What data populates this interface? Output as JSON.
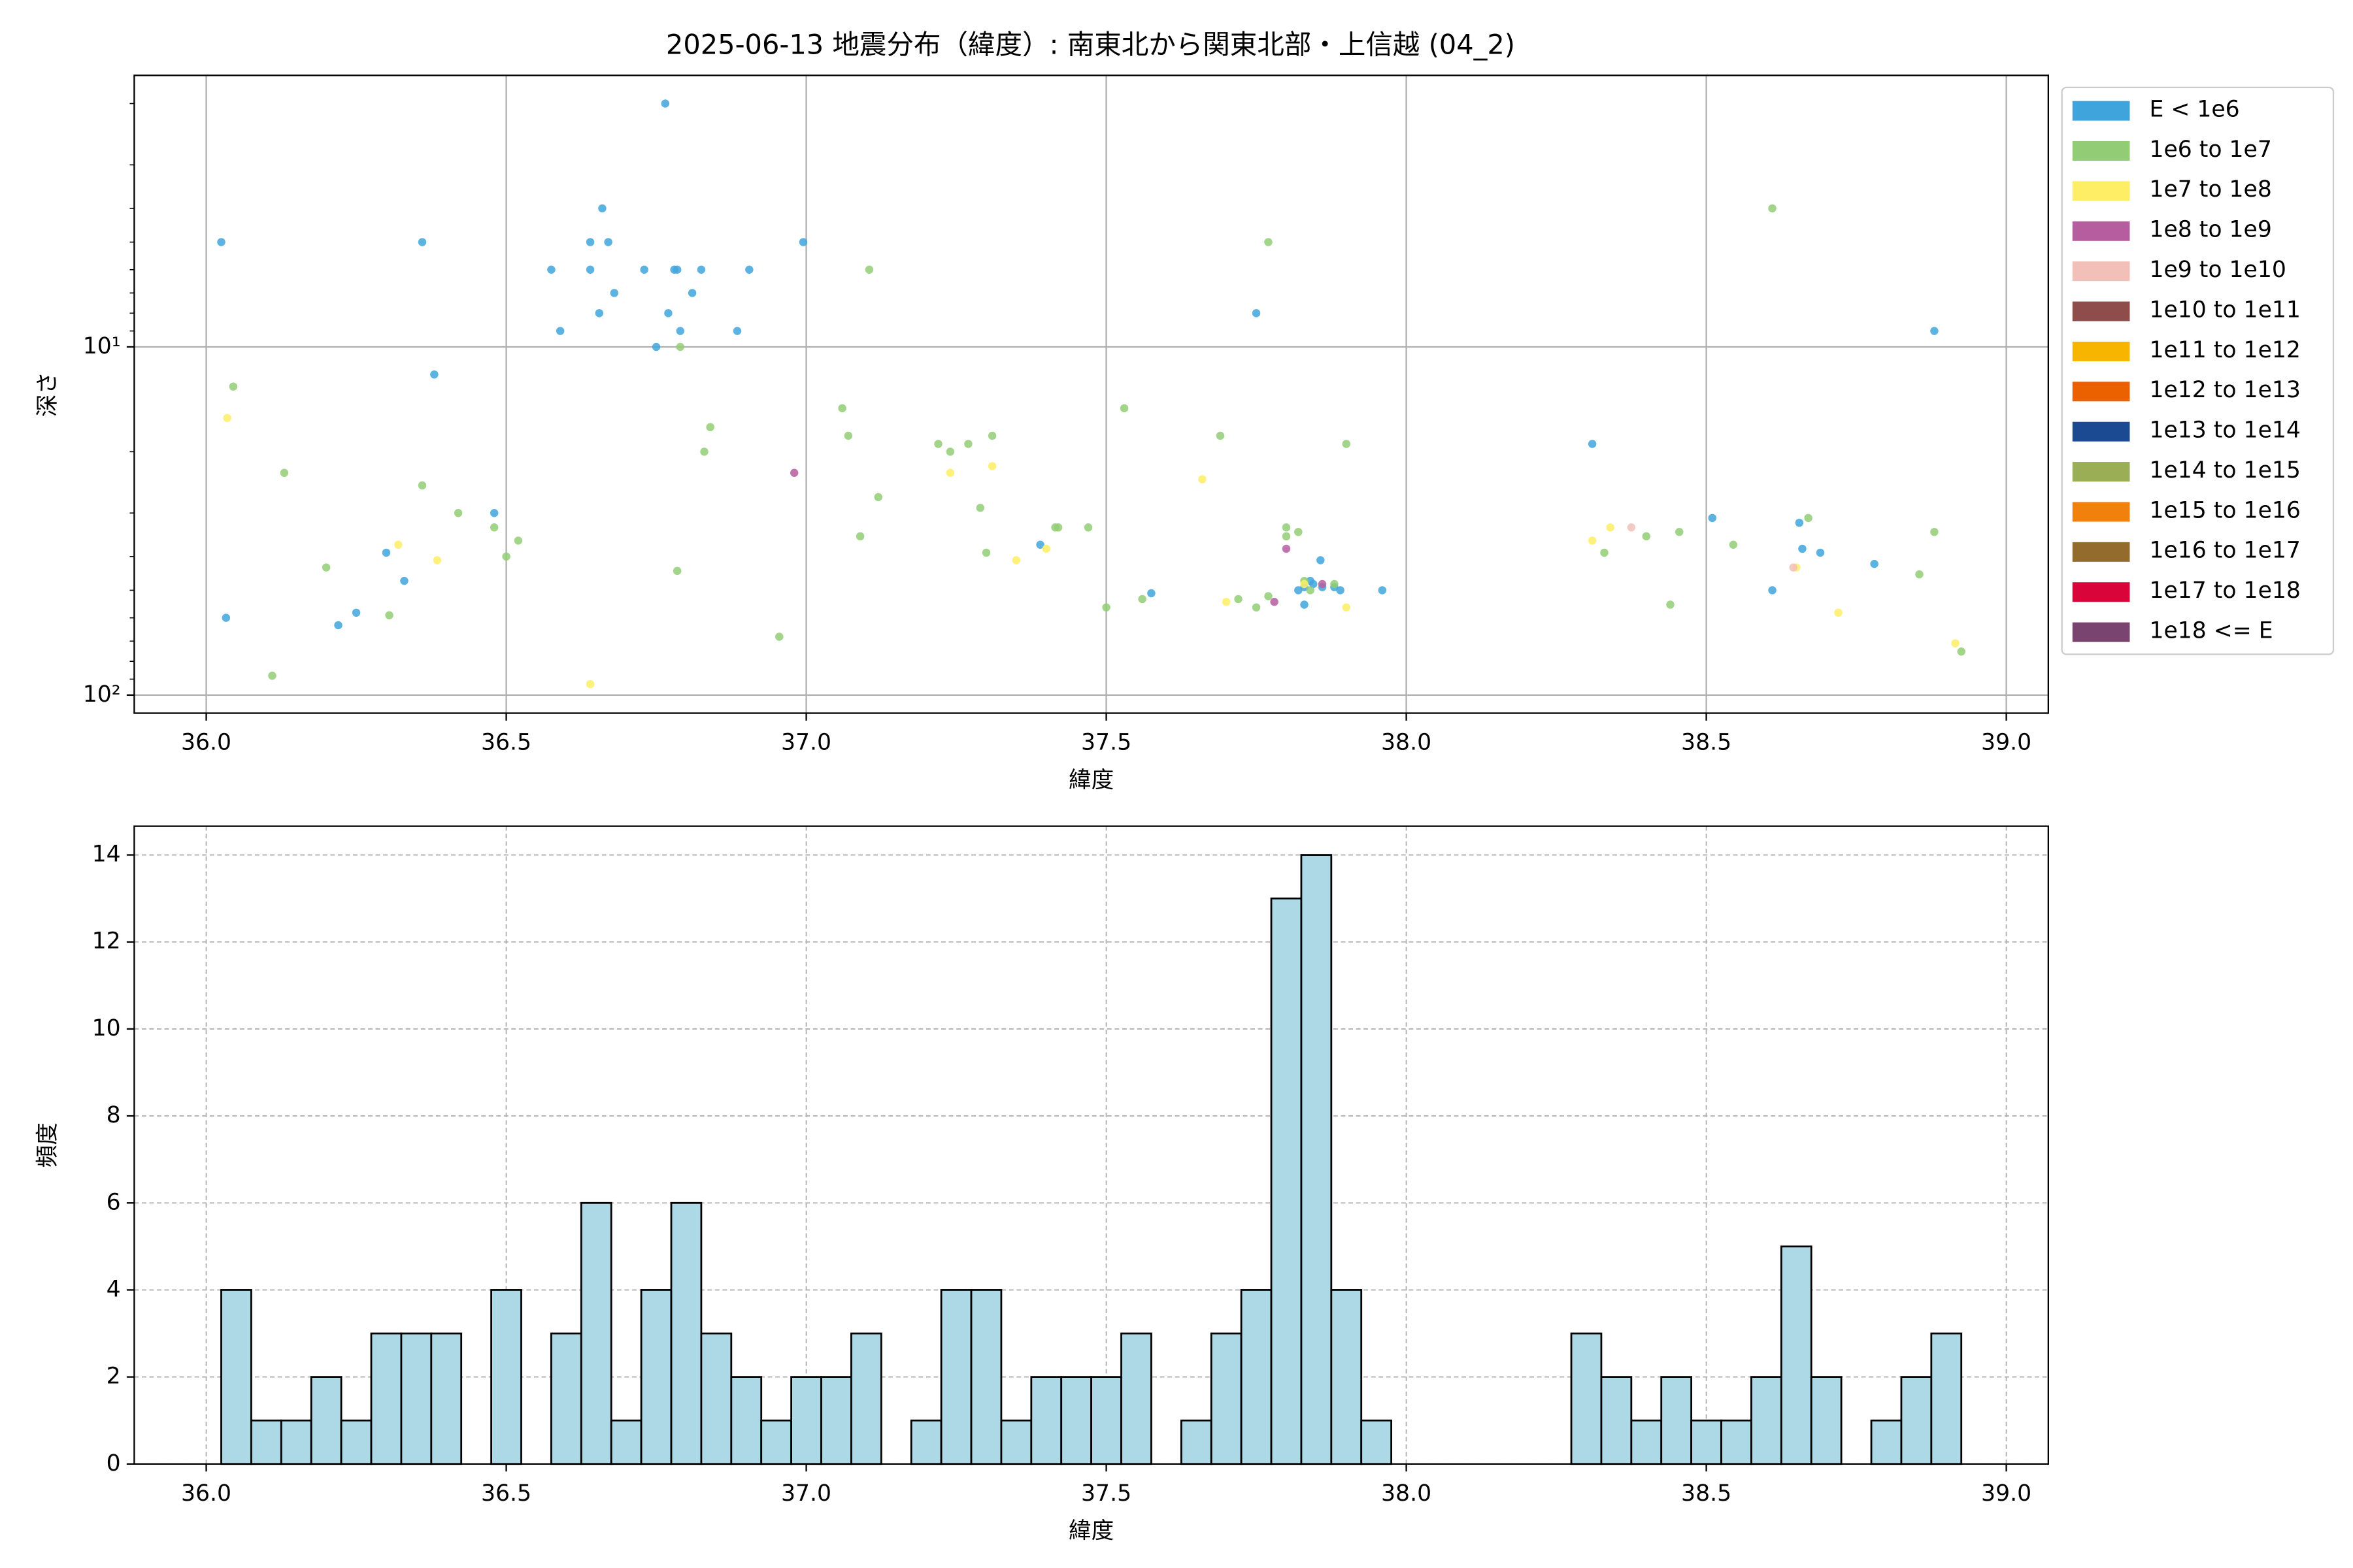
{
  "chart_data": [
    {
      "type": "scatter",
      "title": "2025-06-13 地震分布（緯度）: 南東北から関東北部・上信越 (04_2)",
      "xlabel": "緯度",
      "ylabel": "深さ",
      "xlim": [
        35.88,
        39.07
      ],
      "xticks": [
        {
          "value": 36,
          "label": "36.0"
        },
        36.5,
        {
          "value": 37,
          "label": "37.0"
        },
        37.5,
        {
          "value": 38,
          "label": "38.0"
        },
        38.5,
        {
          "value": 39,
          "label": "39.0"
        }
      ],
      "ylim": [
        1.66,
        112.7
      ],
      "yscale": "log",
      "yinvert": true,
      "yticks": [
        {
          "value": 10,
          "label": "10¹"
        },
        {
          "value": 100,
          "label": "10²"
        }
      ],
      "yminorticks": [
        2,
        3,
        4,
        5,
        6,
        7,
        8,
        9,
        20,
        30,
        40,
        50,
        60,
        70,
        80,
        90
      ],
      "grid": true,
      "legend": "outside right",
      "series": [
        {
          "name": "E < 1e6",
          "color": "#3fa4dc",
          "x": [
            36.025,
            36.033,
            36.36,
            36.38,
            36.48,
            36.3,
            36.33,
            36.25,
            36.22,
            36.575,
            36.59,
            36.64,
            36.64,
            36.66,
            36.67,
            36.655,
            36.68,
            36.73,
            36.75,
            36.765,
            36.77,
            36.78,
            36.785,
            36.79,
            36.81,
            36.825,
            36.885,
            36.905,
            36.995,
            37.39,
            37.575,
            37.75,
            37.857,
            37.84,
            37.83,
            37.82,
            37.83,
            37.845,
            37.86,
            37.88,
            37.89,
            37.96,
            38.31,
            38.51,
            38.61,
            38.655,
            38.66,
            38.69,
            38.78,
            38.88
          ],
          "values": [
            5,
            60,
            5,
            12,
            30,
            39,
            47,
            58,
            63,
            6,
            9,
            5,
            6,
            4,
            5,
            8,
            7,
            6,
            10,
            2,
            8,
            6,
            6,
            9,
            7,
            6,
            9,
            6,
            5,
            37,
            51,
            8,
            41,
            47,
            49,
            50,
            55,
            48,
            49,
            49,
            50,
            50,
            19,
            31,
            50,
            32,
            38,
            39,
            42,
            9
          ]
        },
        {
          "name": "1e6 to 1e7",
          "color": "#92cc74",
          "x": [
            36.045,
            36.13,
            36.2,
            36.305,
            36.11,
            36.36,
            36.42,
            36.48,
            36.5,
            36.52,
            36.785,
            36.79,
            36.83,
            36.84,
            36.955,
            37.06,
            37.07,
            37.09,
            37.105,
            37.12,
            37.22,
            37.24,
            37.27,
            37.31,
            37.29,
            37.3,
            37.415,
            37.42,
            37.47,
            37.5,
            37.53,
            37.56,
            37.69,
            37.72,
            37.75,
            37.77,
            37.77,
            37.8,
            37.8,
            37.82,
            37.9,
            37.83,
            37.84,
            37.88,
            38.33,
            38.4,
            38.44,
            38.455,
            38.545,
            38.61,
            38.67,
            38.855,
            38.88,
            38.925
          ],
          "values": [
            13,
            23,
            43,
            59,
            88,
            25,
            30,
            33,
            40,
            36,
            44,
            10,
            20,
            17,
            68,
            15,
            18,
            35,
            6,
            27,
            19,
            20,
            19,
            18,
            29,
            39,
            33,
            33,
            33,
            56,
            15,
            53,
            18,
            53,
            56,
            5,
            52,
            33,
            35,
            34,
            19,
            47,
            50,
            48,
            39,
            35,
            55,
            34,
            37,
            4,
            31,
            45,
            34,
            75
          ]
        },
        {
          "name": "1e7 to 1e8",
          "color": "#fdee65",
          "x": [
            36.035,
            36.32,
            36.385,
            36.64,
            37.24,
            37.31,
            37.35,
            37.4,
            37.66,
            37.7,
            37.83,
            37.9,
            38.31,
            38.34,
            38.65,
            38.72,
            38.915
          ],
          "values": [
            16,
            37,
            41,
            93,
            23,
            22,
            41,
            38,
            24,
            54,
            48,
            56,
            36,
            33,
            43,
            58,
            71
          ]
        },
        {
          "name": "1e8 to 1e9",
          "color": "#b65d9f",
          "x": [
            36.98,
            37.8,
            37.78,
            37.86
          ],
          "values": [
            23,
            38,
            54,
            48
          ]
        },
        {
          "name": "1e9 to 1e10",
          "color": "#f2bfb9",
          "x": [
            38.375,
            38.645
          ],
          "values": [
            33,
            43
          ]
        },
        {
          "name": "1e10 to 1e11",
          "color": "#8e4c4a",
          "x": [],
          "values": []
        },
        {
          "name": "1e11 to 1e12",
          "color": "#f7b500",
          "x": [],
          "values": []
        },
        {
          "name": "1e12 to 1e13",
          "color": "#eb6100",
          "x": [],
          "values": []
        },
        {
          "name": "1e13 to 1e14",
          "color": "#1b4a93",
          "x": [],
          "values": []
        },
        {
          "name": "1e14 to 1e15",
          "color": "#9aae55",
          "x": [],
          "values": []
        },
        {
          "name": "1e15 to 1e16",
          "color": "#f2800d",
          "x": [],
          "values": []
        },
        {
          "name": "1e16 to 1e17",
          "color": "#936b2d",
          "x": [],
          "values": []
        },
        {
          "name": "1e17 to 1e18",
          "color": "#d9043a",
          "x": [],
          "values": []
        },
        {
          "name": "1e18 <= E",
          "color": "#7a4471",
          "x": [],
          "values": []
        }
      ]
    },
    {
      "type": "histogram",
      "xlabel": "緯度",
      "ylabel": "頻度",
      "color": "#add8e6",
      "xlim": [
        35.88,
        39.07
      ],
      "xticks": [
        {
          "value": 36,
          "label": "36.0"
        },
        36.5,
        {
          "value": 37,
          "label": "37.0"
        },
        37.5,
        {
          "value": 38,
          "label": "38.0"
        },
        38.5,
        {
          "value": 39,
          "label": "39.0"
        }
      ],
      "ylim": [
        0,
        14.66
      ],
      "yticks": [
        0,
        2,
        4,
        6,
        8,
        10,
        12,
        14
      ],
      "grid": "dashed",
      "bins": [
        36.025,
        36.075,
        36.125,
        36.175,
        36.225,
        36.275,
        36.325,
        36.375,
        36.425,
        36.475,
        36.525,
        36.575,
        36.625,
        36.675,
        36.725,
        36.775,
        36.825,
        36.875,
        36.925,
        36.975,
        37.025,
        37.075,
        37.125,
        37.175,
        37.225,
        37.275,
        37.325,
        37.375,
        37.425,
        37.475,
        37.525,
        37.575,
        37.625,
        37.675,
        37.725,
        37.775,
        37.825,
        37.875,
        37.925,
        37.975,
        38.025,
        38.075,
        38.125,
        38.175,
        38.225,
        38.275,
        38.325,
        38.375,
        38.425,
        38.475,
        38.525,
        38.575,
        38.625,
        38.675,
        38.725,
        38.775,
        38.825,
        38.875,
        38.925
      ],
      "counts": [
        4,
        1,
        1,
        2,
        1,
        3,
        3,
        3,
        0,
        4,
        0,
        3,
        6,
        1,
        4,
        6,
        3,
        2,
        1,
        2,
        2,
        3,
        0,
        1,
        4,
        4,
        1,
        2,
        2,
        2,
        3,
        0,
        1,
        3,
        4,
        13,
        14,
        4,
        1,
        0,
        0,
        0,
        0,
        0,
        0,
        3,
        2,
        1,
        2,
        1,
        1,
        2,
        5,
        2,
        0,
        1,
        2,
        3
      ]
    }
  ]
}
